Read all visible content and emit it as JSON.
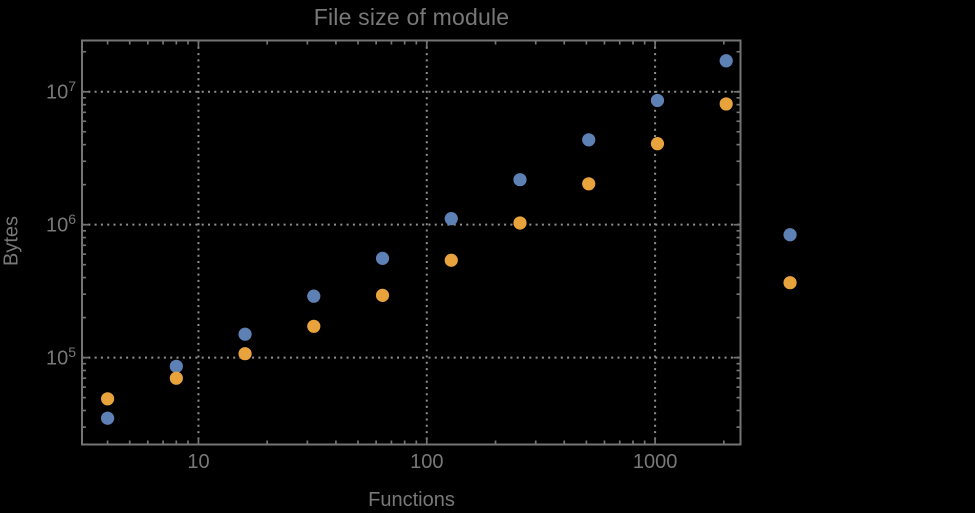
{
  "colors": {
    "background": "#000000",
    "frame": "#747474",
    "grid": "#8f8f8f",
    "text": "#787878",
    "series_blue": "#5e81b5",
    "series_orange": "#e8a33d"
  },
  "chart_data": {
    "type": "scatter",
    "title": "File size of module",
    "xlabel": "Functions",
    "ylabel": "Bytes",
    "xscale": "log",
    "yscale": "log",
    "xlim": [
      3.09,
      2366
    ],
    "ylim": [
      22200,
      24300000
    ],
    "grid": true,
    "grid_style": "dotted",
    "legend": null,
    "x_ticks": [
      {
        "value": 10,
        "label": "10"
      },
      {
        "value": 100,
        "label": "100"
      },
      {
        "value": 1000,
        "label": "1000"
      }
    ],
    "y_ticks": [
      {
        "value": 100000,
        "base": "10",
        "exp": "5"
      },
      {
        "value": 1000000,
        "base": "10",
        "exp": "6"
      },
      {
        "value": 10000000,
        "base": "10",
        "exp": "7"
      }
    ],
    "series": [
      {
        "name": "blue",
        "color": "#5e81b5",
        "points": [
          [
            4,
            35000
          ],
          [
            8,
            86000
          ],
          [
            16,
            150000
          ],
          [
            32,
            290000
          ],
          [
            64,
            558000
          ],
          [
            128,
            1110000
          ],
          [
            256,
            2180000
          ],
          [
            512,
            4350000
          ],
          [
            1024,
            8600000
          ],
          [
            2048,
            17100000
          ],
          [
            3900,
            840000
          ]
        ]
      },
      {
        "name": "orange",
        "color": "#e8a33d",
        "points": [
          [
            4,
            49000
          ],
          [
            8,
            70000
          ],
          [
            16,
            107000
          ],
          [
            32,
            172000
          ],
          [
            64,
            294000
          ],
          [
            128,
            540000
          ],
          [
            256,
            1030000
          ],
          [
            512,
            2030000
          ],
          [
            1024,
            4070000
          ],
          [
            2048,
            8100000
          ],
          [
            3900,
            366000
          ]
        ]
      }
    ]
  }
}
